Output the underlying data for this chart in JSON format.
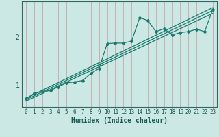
{
  "bg_color": "#cce8e4",
  "line_color": "#1a7a6e",
  "grid_color": "#aaccc8",
  "axis_color": "#336660",
  "xlabel": "Humidex (Indice chaleur)",
  "yticks": [
    1,
    2
  ],
  "xticks": [
    0,
    1,
    2,
    3,
    4,
    5,
    6,
    7,
    8,
    9,
    10,
    11,
    12,
    13,
    14,
    15,
    16,
    17,
    18,
    19,
    20,
    21,
    22,
    23
  ],
  "xlim": [
    -0.5,
    23.5
  ],
  "ylim": [
    0.55,
    2.75
  ],
  "scatter_x": [
    0,
    1,
    2,
    3,
    4,
    5,
    6,
    7,
    8,
    9,
    10,
    11,
    12,
    13,
    14,
    15,
    16,
    17,
    18,
    19,
    20,
    21,
    22,
    23
  ],
  "scatter_y": [
    0.72,
    0.83,
    0.87,
    0.89,
    0.97,
    1.05,
    1.07,
    1.1,
    1.25,
    1.35,
    1.87,
    1.88,
    1.88,
    1.92,
    2.41,
    2.35,
    2.12,
    2.18,
    2.05,
    2.1,
    2.12,
    2.17,
    2.12,
    2.58
  ],
  "line1_x": [
    0,
    23
  ],
  "line1_y": [
    0.7,
    2.56
  ],
  "line2_x": [
    0,
    23
  ],
  "line2_y": [
    0.67,
    2.5
  ],
  "line3_x": [
    0,
    23
  ],
  "line3_y": [
    0.73,
    2.62
  ],
  "font_color": "#1a5a54",
  "xlabel_fontsize": 7,
  "tick_fontsize": 5.5
}
